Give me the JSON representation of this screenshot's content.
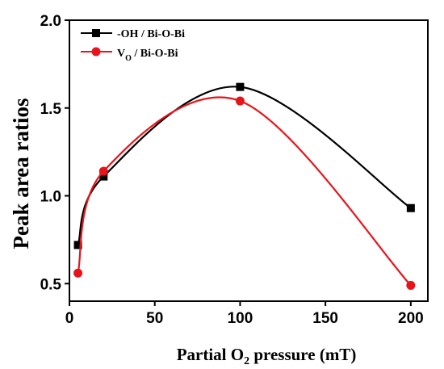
{
  "chart_data": {
    "type": "line",
    "xlabel": "Partial O",
    "xlabel_sub": "2",
    "xlabel_suffix": " pressure (mT)",
    "ylabel": "Peak area ratios",
    "xlim": [
      0,
      210
    ],
    "ylim": [
      0.4,
      2.0
    ],
    "xticks": [
      "0",
      "50",
      "100",
      "150",
      "200"
    ],
    "xtick_values": [
      0,
      50,
      100,
      150,
      200
    ],
    "yticks": [
      "0.5",
      "1.0",
      "1.5",
      "2.0"
    ],
    "ytick_values": [
      0.5,
      1.0,
      1.5,
      2.0
    ],
    "legend_position": "top-left",
    "series": [
      {
        "name": "-OH / Bi-O-Bi",
        "name_main": "-OH / Bi-O-Bi",
        "name_sub": "",
        "name_rest": "",
        "color": "#000000",
        "marker": "square",
        "x": [
          5,
          20,
          100,
          200
        ],
        "y": [
          0.72,
          1.11,
          1.62,
          0.93
        ]
      },
      {
        "name": "VO / Bi-O-Bi",
        "name_main": "V",
        "name_sub": "O",
        "name_rest": " / Bi-O-Bi",
        "color": "#e8141c",
        "marker": "circle",
        "x": [
          5,
          20,
          100,
          200
        ],
        "y": [
          0.56,
          1.14,
          1.54,
          0.49
        ]
      }
    ]
  }
}
